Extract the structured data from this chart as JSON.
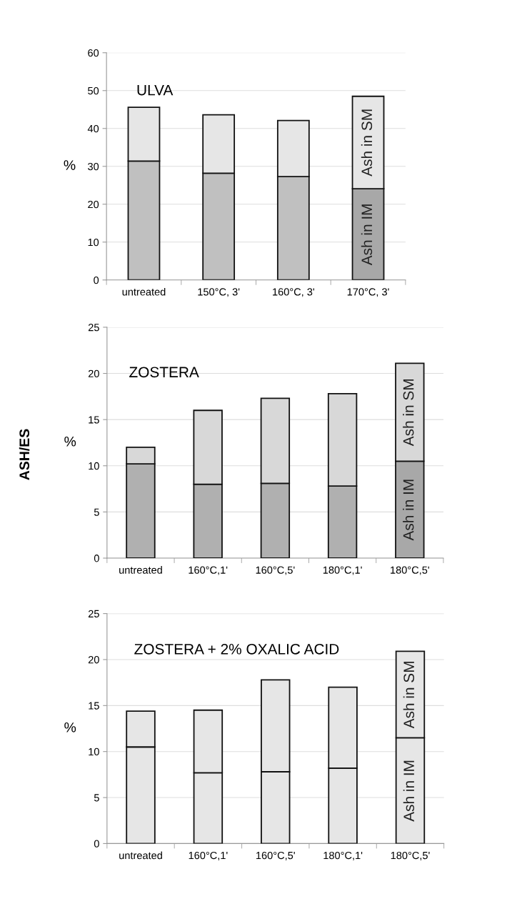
{
  "chart_data": [
    {
      "type": "bar",
      "title": "ULVA",
      "ylabel": "%",
      "stacked": true,
      "categories": [
        "untreated",
        "150°C, 3'",
        "160°C, 3'",
        "170°C, 3'"
      ],
      "ylim": [
        0,
        60
      ],
      "yticks": [
        0,
        10,
        20,
        30,
        40,
        50,
        60
      ],
      "grid": "y",
      "series": [
        {
          "name": "Ash in IM",
          "colors": [
            "#c0c0c0",
            "#c0c0c0",
            "#c0c0c0",
            "#a8a8a8"
          ],
          "values": [
            31.4,
            28.2,
            27.3,
            24.1
          ]
        },
        {
          "name": "Ash in SM",
          "color": "#e6e6e6",
          "values": [
            14.2,
            15.4,
            14.8,
            24.4
          ]
        }
      ]
    },
    {
      "type": "bar",
      "title": "ZOSTERA",
      "ylabel": "%",
      "stacked": true,
      "annotations": [
        "ASH/ES"
      ],
      "categories": [
        "untreated",
        "160°C,1'",
        "160°C,5'",
        "180°C,1'",
        "180°C,5'"
      ],
      "ylim": [
        0,
        25
      ],
      "yticks": [
        0,
        5,
        10,
        15,
        20,
        25
      ],
      "grid": "y",
      "series": [
        {
          "name": "Ash in IM",
          "colors": [
            "#b0b0b0",
            "#b0b0b0",
            "#b0b0b0",
            "#b0b0b0",
            "#a8a8a8"
          ],
          "values": [
            10.2,
            8.0,
            8.1,
            7.8,
            10.5
          ]
        },
        {
          "name": "Ash in SM",
          "color": "#d8d8d8",
          "values": [
            1.8,
            8.0,
            9.2,
            10.0,
            10.6
          ]
        }
      ]
    },
    {
      "type": "bar",
      "title": "ZOSTERA + 2% OXALIC ACID",
      "ylabel": "%",
      "stacked": true,
      "categories": [
        "untreated",
        "160°C,1'",
        "160°C,5'",
        "180°C,1'",
        "180°C,5'"
      ],
      "ylim": [
        0,
        25
      ],
      "yticks": [
        0,
        5,
        10,
        15,
        20,
        25
      ],
      "grid": "y",
      "series": [
        {
          "name": "Ash in IM",
          "color": "#e6e6e6",
          "values": [
            10.5,
            7.7,
            7.8,
            8.2,
            11.5
          ]
        },
        {
          "name": "Ash in SM",
          "color": "#e6e6e6",
          "values": [
            3.9,
            6.8,
            10.0,
            8.8,
            9.4
          ]
        }
      ]
    }
  ]
}
